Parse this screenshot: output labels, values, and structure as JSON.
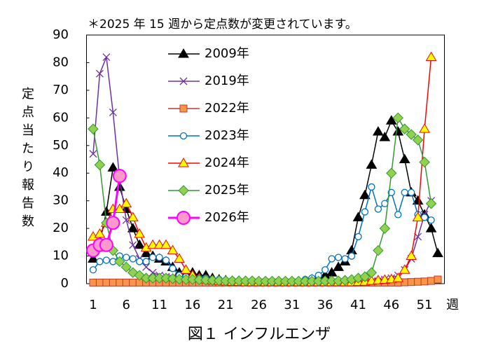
{
  "chart_data": {
    "type": "line",
    "title": "＊2025 年 15 週から定点数が変更されています。",
    "y_label": "定点当たり報告数",
    "x_label": "週",
    "caption": "図１ インフルエンザ",
    "x": [
      1,
      2,
      3,
      4,
      5,
      6,
      7,
      8,
      9,
      10,
      11,
      12,
      13,
      14,
      15,
      16,
      17,
      18,
      19,
      20,
      21,
      22,
      23,
      24,
      25,
      26,
      27,
      28,
      29,
      30,
      31,
      32,
      33,
      34,
      35,
      36,
      37,
      38,
      39,
      40,
      41,
      42,
      43,
      44,
      45,
      46,
      47,
      48,
      49,
      50,
      51,
      52,
      53
    ],
    "xlim": [
      0,
      54
    ],
    "xticks": [
      1,
      6,
      11,
      16,
      21,
      26,
      31,
      36,
      41,
      46,
      51
    ],
    "ylim": [
      0,
      90
    ],
    "yticks": [
      0,
      10,
      20,
      30,
      40,
      50,
      60,
      70,
      80,
      90
    ],
    "series": [
      {
        "name": "2009年",
        "color": "#000000",
        "fill": "#000000",
        "marker": "triangle",
        "values": [
          9,
          15,
          26,
          42,
          35,
          27,
          20,
          14,
          11,
          10,
          9,
          8,
          6,
          4,
          3,
          4,
          3,
          3,
          2,
          1.5,
          1.2,
          1,
          1,
          0.8,
          0.8,
          0.7,
          0.6,
          0.6,
          0.5,
          0.5,
          0.5,
          0.5,
          1,
          1.5,
          2,
          3,
          4,
          6,
          8,
          12,
          24,
          32,
          43,
          55,
          53,
          59,
          55,
          45,
          33,
          30,
          25,
          20,
          11
        ]
      },
      {
        "name": "2019年",
        "color": "#7030a0",
        "fill": "none",
        "marker": "x",
        "values": [
          47,
          76,
          82,
          62,
          38,
          23,
          14,
          9,
          6,
          4,
          3,
          2.5,
          2,
          1.5,
          1,
          0.8,
          0.6,
          0.5,
          0.4,
          0.3,
          0.3,
          0.3,
          0.3,
          0.3,
          0.3,
          0.3,
          0.3,
          0.3,
          0.3,
          0.3,
          0.3,
          0.3,
          0.3,
          0.3,
          0.3,
          0.3,
          0.3,
          0.3,
          0.3,
          0.3,
          0.4,
          0.5,
          0.7,
          1,
          1.5,
          2,
          3,
          5,
          9,
          17,
          25,
          30,
          null
        ]
      },
      {
        "name": "2022年",
        "color": "#c0392b",
        "fill": "#f79646",
        "marker": "square",
        "values": [
          0.4,
          0.4,
          0.4,
          0.4,
          0.4,
          0.4,
          0.4,
          0.4,
          0.4,
          0.4,
          0.4,
          0.4,
          0.4,
          0.4,
          0.4,
          0.4,
          0.4,
          0.4,
          0.4,
          0.4,
          0.4,
          0.4,
          0.4,
          0.4,
          0.4,
          0.4,
          0.4,
          0.4,
          0.4,
          0.4,
          0.4,
          0.4,
          0.4,
          0.4,
          0.4,
          0.4,
          0.4,
          0.4,
          0.4,
          0.4,
          0.4,
          0.4,
          0.4,
          0.4,
          0.4,
          0.4,
          0.4,
          0.5,
          0.6,
          0.7,
          0.8,
          1.0,
          1.5
        ]
      },
      {
        "name": "2023年",
        "color": "#0070c0",
        "fill": "#ffffff",
        "marker": "circle",
        "values": [
          5,
          8,
          8.5,
          8,
          10,
          9.5,
          9,
          8,
          8,
          9.5,
          9.5,
          8.5,
          5.5,
          3,
          2.5,
          2.5,
          2,
          2,
          1.5,
          1.5,
          1.2,
          1.2,
          1,
          1,
          1,
          1,
          1,
          1,
          1,
          1,
          1,
          1,
          1.5,
          2,
          3,
          5,
          9,
          9.5,
          9,
          10,
          17,
          26,
          35,
          27,
          29,
          33,
          25,
          33,
          33,
          25,
          24,
          23,
          null
        ]
      },
      {
        "name": "2024年",
        "color": "#ff0000",
        "fill": "#ffff00",
        "marker": "triangle",
        "values": [
          17,
          18,
          22,
          27,
          27,
          29,
          24,
          18,
          13,
          14,
          14,
          14,
          12,
          9,
          5,
          3,
          2,
          1.5,
          1.2,
          1,
          0.8,
          0.7,
          0.6,
          0.5,
          0.5,
          0.5,
          0.5,
          0.5,
          0.5,
          0.5,
          0.5,
          0.5,
          0.5,
          0.5,
          0.5,
          0.5,
          0.5,
          0.5,
          0.5,
          0.5,
          0.6,
          0.7,
          1,
          1.2,
          1.4,
          1.6,
          2,
          5,
          10,
          24,
          56,
          82,
          null
        ]
      },
      {
        "name": "2025年",
        "color": "#339933",
        "fill": "#92d050",
        "marker": "diamond",
        "values": [
          56,
          43,
          22,
          12,
          8,
          6,
          4,
          3,
          2,
          2,
          2,
          2,
          1.8,
          1.6,
          1.5,
          1.5,
          1.4,
          1.3,
          1.2,
          1.1,
          1,
          1,
          1,
          1,
          1,
          0.9,
          0.9,
          0.9,
          0.9,
          0.9,
          0.9,
          0.9,
          0.9,
          0.9,
          0.9,
          1,
          1,
          1,
          1.2,
          1.5,
          2,
          2.5,
          4,
          12,
          20,
          40,
          60,
          56,
          54,
          52,
          44,
          29,
          null
        ]
      },
      {
        "name": "2026年",
        "color": "#ff00ff",
        "fill": "#ff99cc",
        "marker": "bigcircle",
        "values": [
          12,
          14,
          14,
          22,
          39,
          null,
          null,
          null,
          null,
          null,
          null,
          null,
          null,
          null,
          null,
          null,
          null,
          null,
          null,
          null,
          null,
          null,
          null,
          null,
          null,
          null,
          null,
          null,
          null,
          null,
          null,
          null,
          null,
          null,
          null,
          null,
          null,
          null,
          null,
          null,
          null,
          null,
          null,
          null,
          null,
          null,
          null,
          null,
          null,
          null,
          null,
          null,
          null
        ]
      }
    ]
  }
}
